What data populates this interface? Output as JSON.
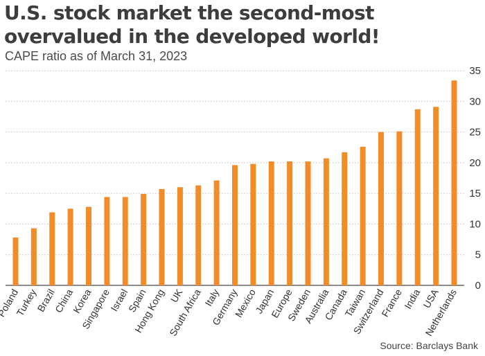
{
  "header": {
    "title": "U.S. stock market the second-most overvalued in the developed world!",
    "subtitle": "CAPE ratio as of March 31, 2023"
  },
  "footer": {
    "source": "Source: Barclays Bank"
  },
  "colors": {
    "bar": "#f28c28",
    "grid": "#cfcfcf",
    "axis": "#444444"
  },
  "chart_data": {
    "type": "bar",
    "categories": [
      "Poland",
      "Turkey",
      "Brazil",
      "China",
      "Korea",
      "Singapore",
      "Israel",
      "Spain",
      "Hong Kong",
      "UK",
      "South Africa",
      "Italy",
      "Germany",
      "Mexico",
      "Japan",
      "Europe",
      "Sweden",
      "Australia",
      "Canada",
      "Taiwan",
      "Switzerland",
      "France",
      "India",
      "USA",
      "Netherlands"
    ],
    "values": [
      7.8,
      9.3,
      11.9,
      12.5,
      12.8,
      14.4,
      14.4,
      14.9,
      15.7,
      16.0,
      16.3,
      17.1,
      19.6,
      19.8,
      20.2,
      20.2,
      20.2,
      20.7,
      21.7,
      22.6,
      25.0,
      25.1,
      28.7,
      29.1,
      33.4
    ],
    "ylim": [
      0,
      35
    ],
    "yticks": [
      0,
      5,
      10,
      15,
      20,
      25,
      30,
      35
    ],
    "grid": true
  }
}
